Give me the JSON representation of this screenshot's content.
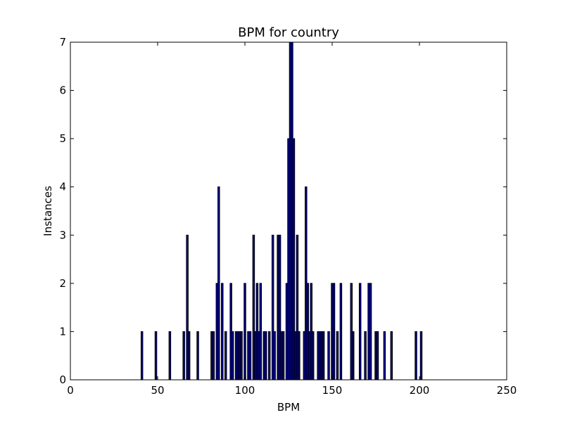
{
  "chart_data": {
    "type": "bar",
    "title": "BPM for country",
    "xlabel": "BPM",
    "ylabel": "Instances",
    "xlim": [
      0,
      250
    ],
    "ylim": [
      0,
      7
    ],
    "xticks": [
      0,
      50,
      100,
      150,
      200,
      250
    ],
    "yticks": [
      0,
      1,
      2,
      3,
      4,
      5,
      6,
      7
    ],
    "xtick_labels": [
      "0",
      "50",
      "100",
      "150",
      "200",
      "250"
    ],
    "ytick_labels": [
      "0",
      "1",
      "2",
      "3",
      "4",
      "5",
      "6",
      "7"
    ],
    "grid": false,
    "bar_color": "#0000a0",
    "bar_edge_color": "#000000",
    "bar_width": 1,
    "series": [
      {
        "x": [
          41,
          49,
          57,
          65,
          67,
          68,
          73,
          81,
          82,
          84,
          85,
          87,
          89,
          92,
          93,
          95,
          96,
          97,
          98,
          100,
          102,
          103,
          105,
          106,
          107,
          108,
          109,
          111,
          112,
          114,
          116,
          117,
          119,
          120,
          121,
          122,
          124,
          125,
          126,
          127,
          128,
          129,
          130,
          131,
          134,
          135,
          136,
          137,
          138,
          139,
          142,
          143,
          144,
          145,
          148,
          150,
          151,
          153,
          155,
          161,
          162,
          166,
          169,
          171,
          172,
          175,
          176,
          180,
          184,
          198,
          201
        ],
        "values": [
          1,
          1,
          1,
          1,
          3,
          1,
          1,
          1,
          1,
          2,
          4,
          2,
          1,
          2,
          1,
          1,
          1,
          1,
          1,
          2,
          1,
          1,
          3,
          1,
          2,
          1,
          2,
          1,
          1,
          1,
          3,
          1,
          3,
          3,
          1,
          1,
          2,
          5,
          7,
          7,
          5,
          1,
          3,
          1,
          1,
          4,
          2,
          1,
          2,
          1,
          1,
          1,
          1,
          1,
          1,
          2,
          2,
          1,
          2,
          2,
          1,
          2,
          1,
          2,
          2,
          1,
          1,
          1,
          1,
          1,
          1
        ]
      }
    ]
  }
}
